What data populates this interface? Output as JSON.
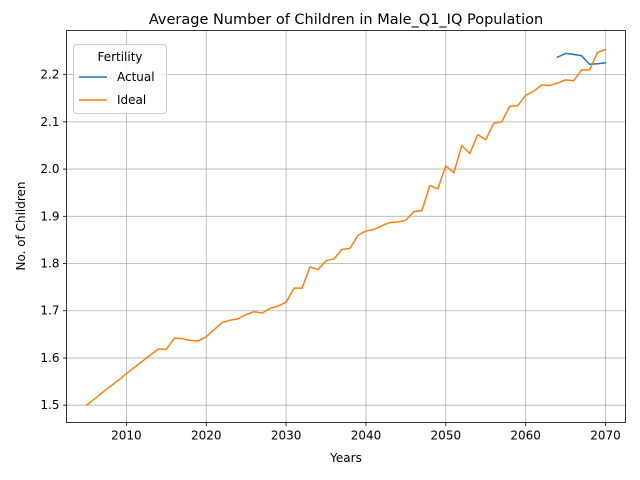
{
  "chart_data": {
    "type": "line",
    "title": "Average Number of Children in Male_Q1_IQ Population",
    "xlabel": "Years",
    "ylabel": "No. of Children",
    "xlim": [
      2002.5,
      2072.5
    ],
    "ylim": [
      1.4633,
      2.2935
    ],
    "xticks": [
      2010,
      2020,
      2030,
      2040,
      2050,
      2060,
      2070
    ],
    "yticks": [
      1.5,
      1.6,
      1.7,
      1.8,
      1.9,
      2.0,
      2.1,
      2.2
    ],
    "ytick_labels": [
      "1.5",
      "1.6",
      "1.7",
      "1.8",
      "1.9",
      "2.0",
      "2.1",
      "2.2"
    ],
    "grid": true,
    "legend": {
      "title": "Fertility",
      "position": "top-left"
    },
    "series": [
      {
        "name": "Actual",
        "color": "#1f77b4",
        "x": [
          2064,
          2065,
          2066,
          2067,
          2068,
          2069,
          2070
        ],
        "y": [
          2.237,
          2.245,
          2.243,
          2.24,
          2.222,
          2.223,
          2.225
        ]
      },
      {
        "name": "Ideal",
        "color": "#ff7f0e",
        "x": [
          2005,
          2006,
          2007,
          2008,
          2009,
          2010,
          2011,
          2012,
          2013,
          2014,
          2015,
          2016,
          2017,
          2018,
          2019,
          2020,
          2021,
          2022,
          2023,
          2024,
          2025,
          2026,
          2027,
          2028,
          2029,
          2030,
          2031,
          2032,
          2033,
          2034,
          2035,
          2036,
          2037,
          2038,
          2039,
          2040,
          2041,
          2042,
          2043,
          2044,
          2045,
          2046,
          2047,
          2048,
          2049,
          2050,
          2051,
          2052,
          2053,
          2054,
          2055,
          2056,
          2057,
          2058,
          2059,
          2060,
          2061,
          2062,
          2063,
          2064,
          2065,
          2066,
          2067,
          2068,
          2069,
          2070
        ],
        "y": [
          1.5,
          1.513,
          1.527,
          1.54,
          1.553,
          1.567,
          1.58,
          1.593,
          1.606,
          1.619,
          1.618,
          1.642,
          1.641,
          1.637,
          1.636,
          1.645,
          1.66,
          1.675,
          1.68,
          1.683,
          1.692,
          1.698,
          1.695,
          1.705,
          1.71,
          1.718,
          1.748,
          1.748,
          1.793,
          1.787,
          1.806,
          1.81,
          1.83,
          1.832,
          1.86,
          1.869,
          1.872,
          1.88,
          1.887,
          1.888,
          1.892,
          1.91,
          1.912,
          1.965,
          1.958,
          2.007,
          1.992,
          2.05,
          2.033,
          2.073,
          2.062,
          2.097,
          2.1,
          2.133,
          2.134,
          2.156,
          2.165,
          2.178,
          2.177,
          2.182,
          2.189,
          2.187,
          2.21,
          2.21,
          2.247,
          2.253
        ]
      }
    ]
  }
}
